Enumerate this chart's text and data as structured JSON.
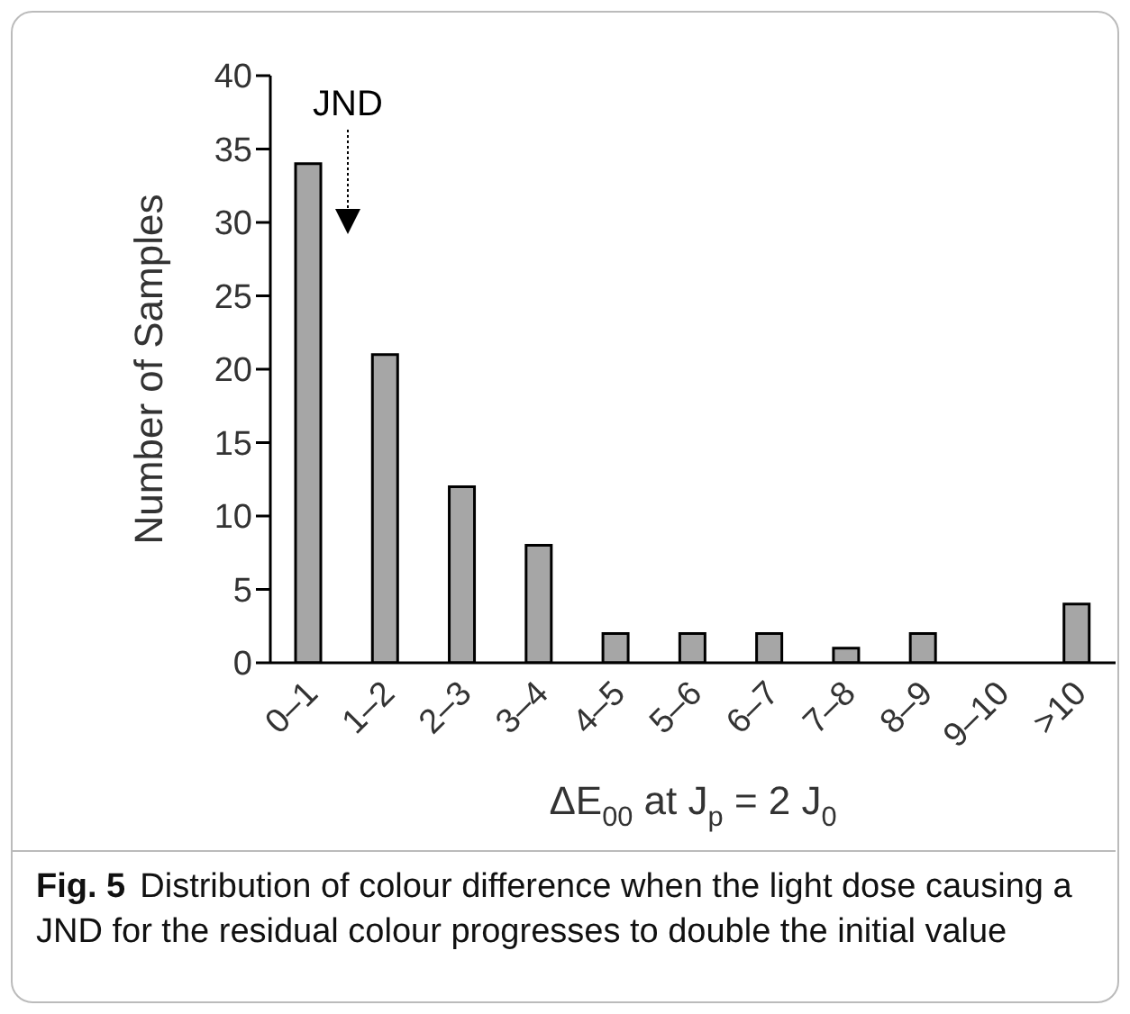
{
  "chart_data": {
    "type": "bar",
    "categories": [
      "0–1",
      "1–2",
      "2–3",
      "3–4",
      "4–5",
      "5–6",
      "6–7",
      "7–8",
      "8–9",
      "9–10",
      ">10"
    ],
    "values": [
      34,
      21,
      12,
      8,
      2,
      2,
      2,
      1,
      2,
      0,
      4
    ],
    "color": "#a6a6a6",
    "xlabel": "ΔE$_{00}$ at J$_{p}$ = 2 J$_{0}$",
    "ylabel": "Number of Samples",
    "ylim": [
      0,
      40
    ],
    "yticks": [
      0,
      5,
      10,
      15,
      20,
      25,
      30,
      35,
      40
    ],
    "grid": false,
    "legend": false,
    "annotations": [
      "JND",
      "Fig. 5",
      "Distribution of colour difference when the light dose causing a JND for the residual colour progresses to double the initial value"
    ]
  }
}
